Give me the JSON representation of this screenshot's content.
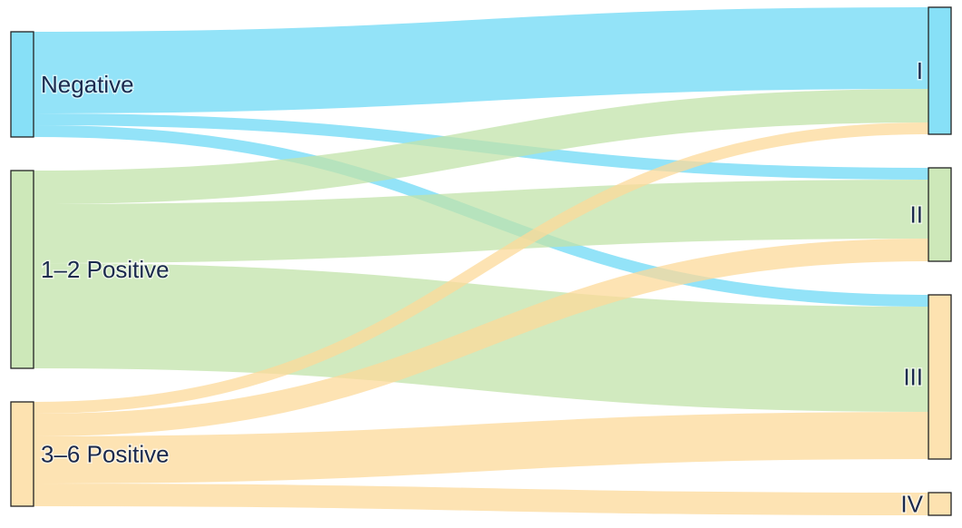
{
  "chart_data": {
    "type": "sankey",
    "nodes": [
      {
        "name": "Negative",
        "color": "#87e0f7",
        "column": 0
      },
      {
        "name": "1–2 Positive",
        "color": "#cde8b9",
        "column": 0
      },
      {
        "name": "3–6 Positive",
        "color": "#fde2b0",
        "column": 0
      },
      {
        "name": "I",
        "color": "#87e0f7",
        "column": 1
      },
      {
        "name": "II",
        "color": "#cde8b9",
        "column": 1
      },
      {
        "name": "III",
        "color": "#fde2b0",
        "column": 1
      },
      {
        "name": "IV",
        "color": "#fde2b0",
        "column": 1
      }
    ],
    "links": [
      {
        "source": 0,
        "target": 3,
        "value": 90
      },
      {
        "source": 0,
        "target": 4,
        "value": 13
      },
      {
        "source": 0,
        "target": 5,
        "value": 13
      },
      {
        "source": 1,
        "target": 3,
        "value": 37
      },
      {
        "source": 1,
        "target": 4,
        "value": 65
      },
      {
        "source": 1,
        "target": 5,
        "value": 116
      },
      {
        "source": 2,
        "target": 3,
        "value": 13
      },
      {
        "source": 2,
        "target": 4,
        "value": 25
      },
      {
        "source": 2,
        "target": 5,
        "value": 52
      },
      {
        "source": 2,
        "target": 6,
        "value": 25
      }
    ],
    "link_colors": [
      "#6fdaf6",
      "#c2e3a9",
      "#fcd99a"
    ]
  }
}
